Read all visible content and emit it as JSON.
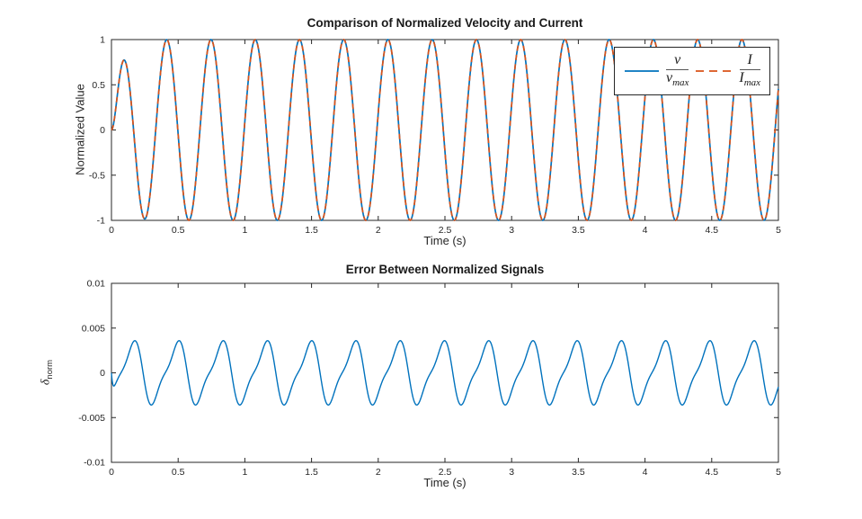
{
  "figure": {
    "background": "#ffffff",
    "axes_color": "#262626",
    "tick_label_color": "#262626",
    "tick_label_font_px": 10.5,
    "tick_direction": "in",
    "box": true,
    "grid": false
  },
  "chart_data": [
    {
      "type": "line",
      "title": "Comparison of Normalized Velocity and Current",
      "xlabel": "Time (s)",
      "ylabel": "Normalized Value",
      "xlim": [
        0,
        5
      ],
      "ylim": [
        -1,
        1
      ],
      "xticks": [
        0,
        0.5,
        1,
        1.5,
        2,
        2.5,
        3,
        3.5,
        4,
        4.5,
        5
      ],
      "xtick_labels": [
        "0",
        "0.5",
        "1",
        "1.5",
        "2",
        "2.5",
        "3",
        "3.5",
        "4",
        "4.5",
        "5"
      ],
      "yticks": [
        1,
        0.5,
        0,
        -0.5,
        -1
      ],
      "ytick_labels": [
        "1",
        "0.5",
        "0",
        "-0.5",
        "-1"
      ],
      "grid": false,
      "legend": {
        "position": "northeast",
        "entries": [
          {
            "label": "v/v_max",
            "numerator": "v",
            "den_base": "v",
            "den_sub": "max",
            "color": "#0072BD",
            "line_style": "solid"
          },
          {
            "label": "I/I_max",
            "numerator": "I",
            "den_base": "I",
            "den_sub": "max",
            "color": "#D95319",
            "line_style": "dashed"
          }
        ]
      },
      "series": [
        {
          "name": "normalized velocity v/v_max",
          "color": "#0072BD",
          "line_style": "solid",
          "line_width": 1.7,
          "model": {
            "kind": "sine_with_rise",
            "amplitude": 1,
            "freq_hz": 3.015,
            "phase_rad": 0,
            "rise_tau_s": 0.06
          },
          "description": "(1-e^(-t/0.06))*sin(2*pi*3.015*t); first peak ~0.75 at t~0.085 s, later peaks ~1, period ~0.332 s, value ~0.45 at t=5"
        },
        {
          "name": "normalized current I/I_max",
          "color": "#D95319",
          "line_style": "dashed",
          "line_width": 1.7,
          "model": {
            "kind": "sine_with_rise",
            "amplitude": 1,
            "freq_hz": 3.015,
            "phase_rad": 0,
            "rise_tau_s": 0.06
          },
          "description": "visually identical to v/v_max (overlapping dashed curve)"
        }
      ]
    },
    {
      "type": "line",
      "title": "Error Between Normalized Signals",
      "xlabel": "Time (s)",
      "ylabel": "δ_norm",
      "ylabel_symbol": "δ",
      "ylabel_subscript": "norm",
      "xlim": [
        0,
        5
      ],
      "ylim": [
        -0.01,
        0.01
      ],
      "xticks": [
        0,
        0.5,
        1,
        1.5,
        2,
        2.5,
        3,
        3.5,
        4,
        4.5,
        5
      ],
      "xtick_labels": [
        "0",
        "0.5",
        "1",
        "1.5",
        "2",
        "2.5",
        "3",
        "3.5",
        "4",
        "4.5",
        "5"
      ],
      "yticks": [
        0.01,
        0.005,
        0,
        -0.005,
        -0.01
      ],
      "ytick_labels": [
        "0.01",
        "0.005",
        "0",
        "-0.005",
        "-0.01"
      ],
      "grid": false,
      "series": [
        {
          "name": "normalization error delta_norm",
          "color": "#0072BD",
          "line_style": "solid",
          "line_width": 1.4,
          "model": {
            "kind": "sine_plus_harmonic",
            "a1": 0.0032,
            "a2": -0.0009,
            "freq_hz": 3.015,
            "phase_rad": -1.35,
            "rise_tau_s": 0.012
          },
          "description": "oscillates between ~+0.0035 and ~-0.0035 at ~3 Hz with a shoulder on each rising edge; first peak ~t=0.18 s, starts near -0.0025"
        }
      ]
    }
  ]
}
